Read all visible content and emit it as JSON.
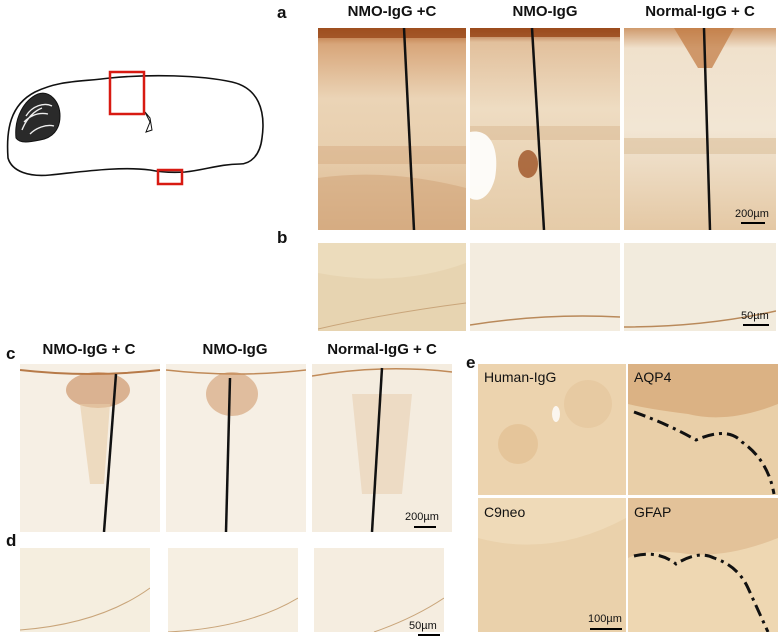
{
  "panel_labels": {
    "a": "a",
    "b": "b",
    "c": "c",
    "d": "d",
    "e": "e"
  },
  "row_a_titles": [
    "NMO-IgG +C",
    "NMO-IgG",
    "Normal-IgG + C"
  ],
  "row_c_titles": [
    "NMO-IgG + C",
    "NMO-IgG",
    "Normal-IgG + C"
  ],
  "scale_bars": {
    "a": "200µm",
    "b": "50µm",
    "c": "200µm",
    "d": "50µm",
    "e": "100µm"
  },
  "panel_e_labels": [
    "Human-IgG",
    "AQP4",
    "C9neo",
    "GFAP"
  ],
  "colors": {
    "stain_dark": "#9a4a1c",
    "stain_mid": "#c98a55",
    "tissue_light": "#efe2cc",
    "background": "#ffffff"
  }
}
